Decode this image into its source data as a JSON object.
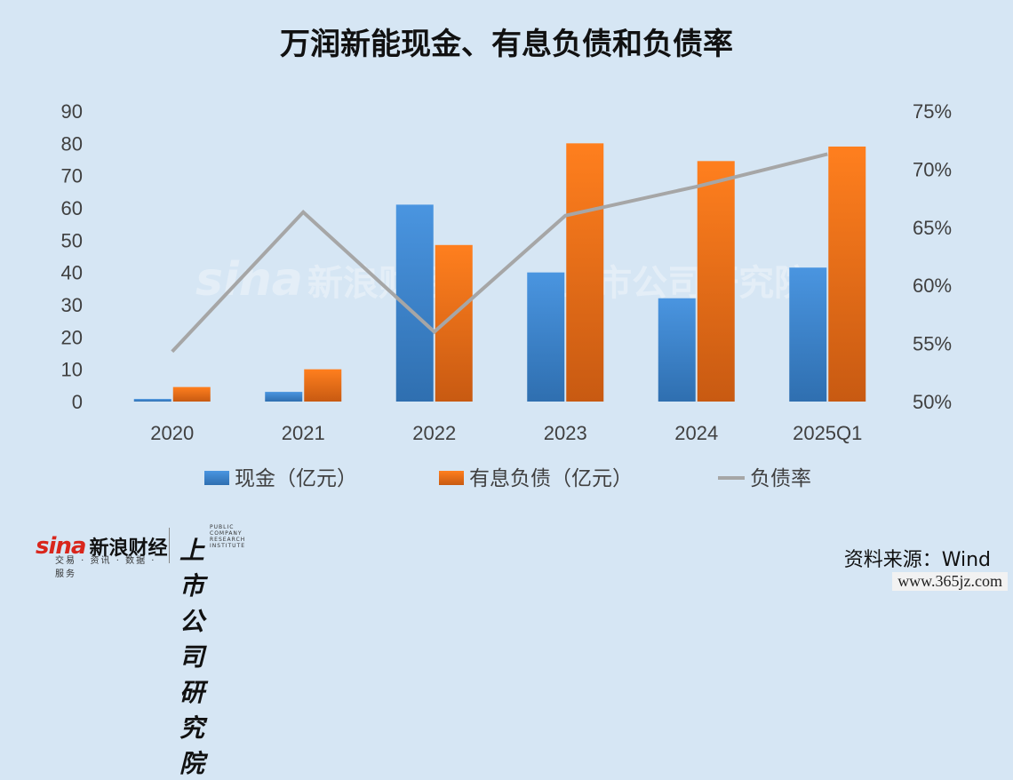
{
  "title": "万润新能现金、有息负债和负债率",
  "source": "资料来源：Wind",
  "watermark": "www.365jz.com",
  "logo": {
    "sina": "sina",
    "sina_cn": "新浪财经",
    "sina_sub": "交易 · 资讯 · 数据 · 服务",
    "institute_en": "PUBLIC COMPANY RESEARCH INSTITUTE",
    "institute_cn": "上市公司研究院"
  },
  "background_mark": {
    "sina": "sina",
    "sina_cn": "新浪财经",
    "institute_cn": "上市公司研究院"
  },
  "colors": {
    "background": "#d6e6f4",
    "cash": "#3f86cf",
    "debt": "#f07a22",
    "ratio": "#a6a6a6"
  },
  "chart_data": {
    "type": "bar",
    "categories": [
      "2020",
      "2021",
      "2022",
      "2023",
      "2024",
      "2025Q1"
    ],
    "series": [
      {
        "name": "现金（亿元）",
        "type": "bar",
        "axis": "left",
        "values": [
          0.8,
          3,
          61,
          40,
          32,
          41.5
        ]
      },
      {
        "name": "有息负债（亿元）",
        "type": "bar",
        "axis": "left",
        "values": [
          4.5,
          10,
          48.5,
          80,
          74.5,
          79
        ]
      },
      {
        "name": "负债率",
        "type": "line",
        "axis": "right",
        "values": [
          54.3,
          66.3,
          56,
          66,
          68.5,
          71.3
        ]
      }
    ],
    "ylim": [
      0,
      90
    ],
    "y_ticks": [
      "0",
      "10",
      "20",
      "30",
      "40",
      "50",
      "60",
      "70",
      "80",
      "90"
    ],
    "y2lim": [
      50,
      75
    ],
    "y2_ticks": [
      "50%",
      "55%",
      "60%",
      "65%",
      "70%",
      "75%"
    ],
    "legend": "bottom",
    "grid": false
  }
}
